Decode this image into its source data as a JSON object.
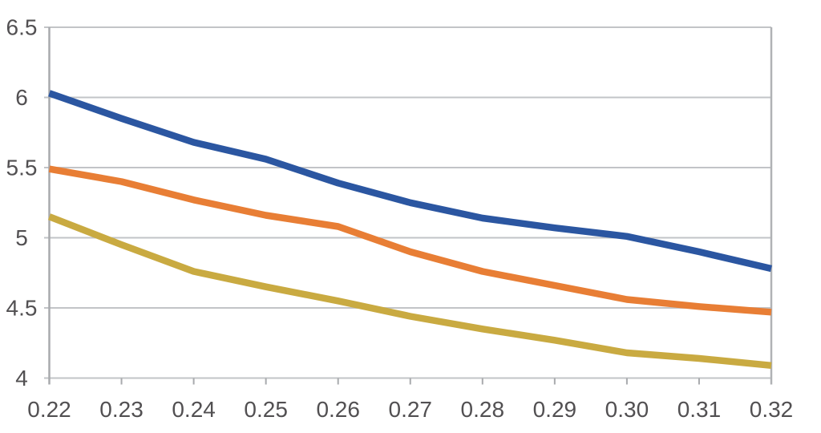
{
  "chart_data": {
    "type": "line",
    "title": "",
    "xlabel": "",
    "ylabel": "",
    "x": [
      0.22,
      0.23,
      0.24,
      0.25,
      0.26,
      0.27,
      0.28,
      0.29,
      0.3,
      0.31,
      0.32
    ],
    "x_tick_labels": [
      "0.22",
      "0.23",
      "0.24",
      "0.25",
      "0.26",
      "0.27",
      "0.28",
      "0.29",
      "0.30",
      "0.31",
      "0.32"
    ],
    "ylim": [
      4,
      6.5
    ],
    "y_tick_step": 0.5,
    "y_tick_labels": [
      "6.5",
      "6",
      "5.5",
      "5",
      "4.5",
      "4"
    ],
    "y_tick_values": [
      6.5,
      6,
      5.5,
      5,
      4.5,
      4
    ],
    "grid": true,
    "legend": false,
    "series": [
      {
        "name": "yellow-line",
        "color": "#C9AA41",
        "values": [
          5.15,
          4.95,
          4.76,
          4.65,
          4.55,
          4.44,
          4.35,
          4.27,
          4.18,
          4.14,
          4.09
        ]
      },
      {
        "name": "orange-line",
        "color": "#E87E35",
        "values": [
          5.49,
          5.4,
          5.27,
          5.16,
          5.08,
          4.9,
          4.76,
          4.66,
          4.56,
          4.51,
          4.47
        ]
      },
      {
        "name": "blue-line",
        "color": "#2B56A1",
        "values": [
          6.03,
          5.85,
          5.68,
          5.56,
          5.39,
          5.25,
          5.14,
          5.07,
          5.01,
          4.9,
          4.78
        ]
      }
    ]
  },
  "style": {
    "background": "#ffffff",
    "gridline_color": "#c2c4c7",
    "axis_color": "#a8aaad",
    "right_border_color": "#b0b2b5",
    "label_color": "#525052",
    "line_width": 8.5,
    "label_font_size": 28
  }
}
